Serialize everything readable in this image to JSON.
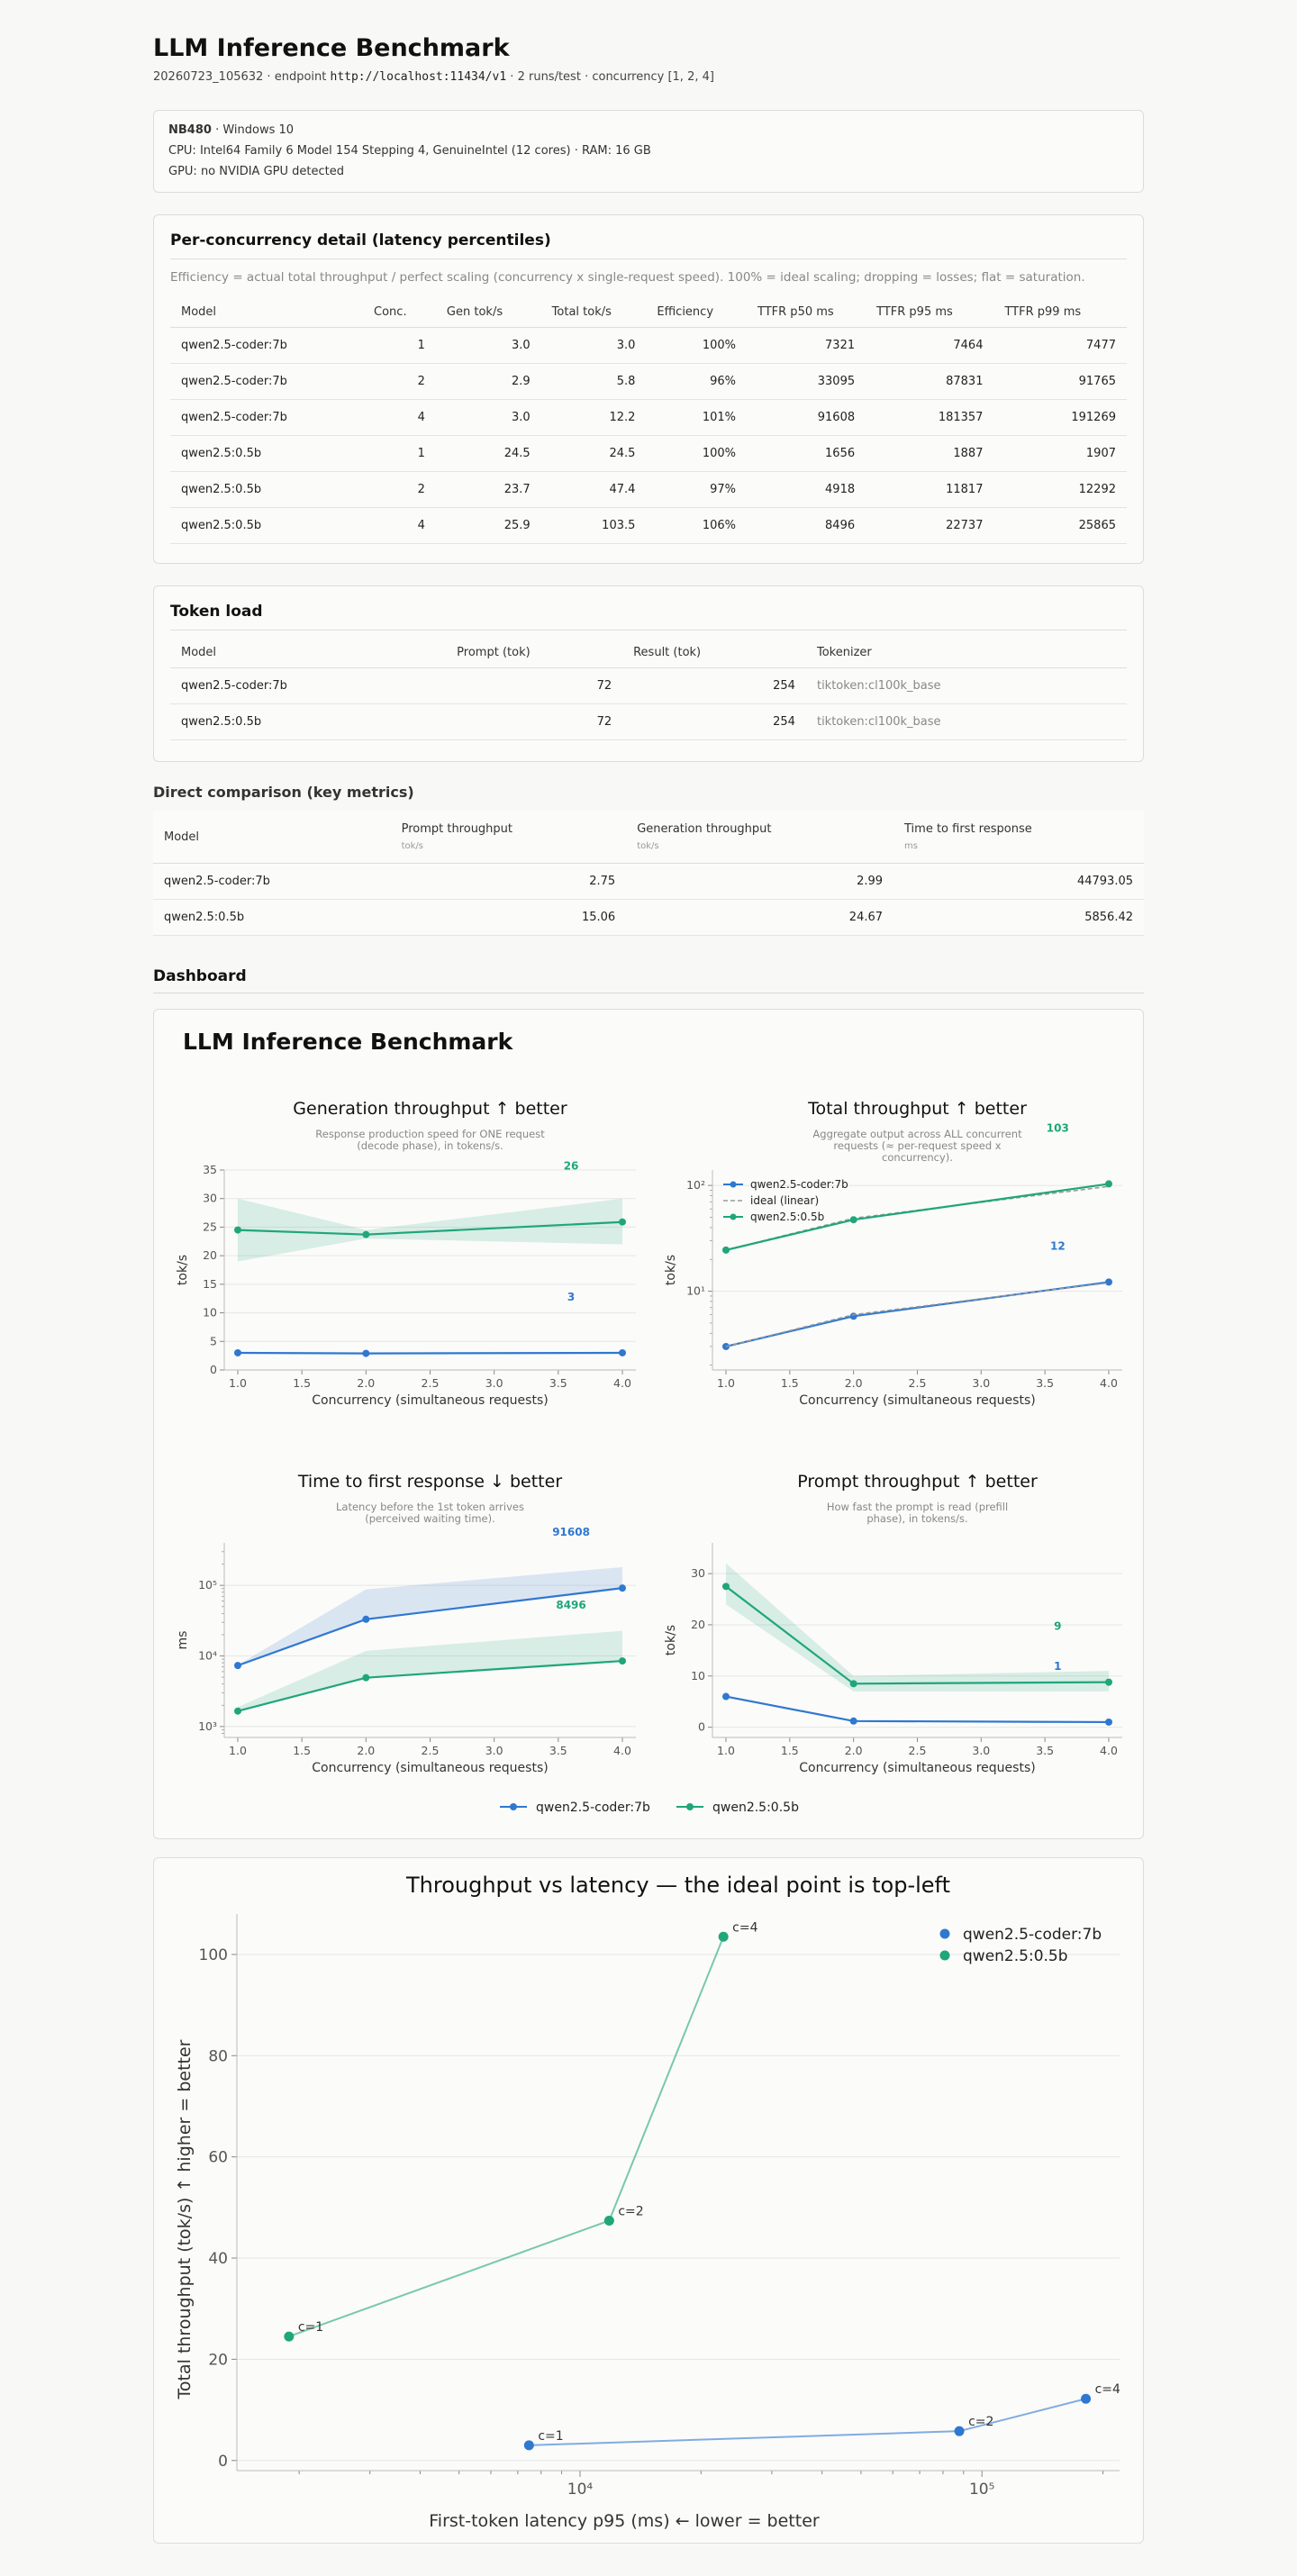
{
  "report": {
    "title": "LLM Inference Benchmark",
    "run_id": "20260723_105632",
    "endpoint_label": "endpoint",
    "endpoint": "http://localhost:11434/v1",
    "runs_info": "2 runs/test",
    "concurrency_info": "concurrency [1, 2, 4]"
  },
  "system": {
    "host": "NB480",
    "os": "Windows 10",
    "cpu_line": "CPU: Intel64 Family 6 Model 154 Stepping 4, GenuineIntel (12 cores) · RAM: 16 GB",
    "gpu_line": "GPU: no NVIDIA GPU detected"
  },
  "detail": {
    "title": "Per-concurrency detail (latency percentiles)",
    "note": "Efficiency = actual total throughput / perfect scaling (concurrency x single-request speed). 100% = ideal scaling; dropping = losses; flat = saturation.",
    "headers": [
      "Model",
      "Conc.",
      "Gen tok/s",
      "Total tok/s",
      "Efficiency",
      "TTFR p50 ms",
      "TTFR p95 ms",
      "TTFR p99 ms"
    ],
    "rows": [
      [
        "qwen2.5-coder:7b",
        "1",
        "3.0",
        "3.0",
        "100%",
        "7321",
        "7464",
        "7477"
      ],
      [
        "qwen2.5-coder:7b",
        "2",
        "2.9",
        "5.8",
        "96%",
        "33095",
        "87831",
        "91765"
      ],
      [
        "qwen2.5-coder:7b",
        "4",
        "3.0",
        "12.2",
        "101%",
        "91608",
        "181357",
        "191269"
      ],
      [
        "qwen2.5:0.5b",
        "1",
        "24.5",
        "24.5",
        "100%",
        "1656",
        "1887",
        "1907"
      ],
      [
        "qwen2.5:0.5b",
        "2",
        "23.7",
        "47.4",
        "97%",
        "4918",
        "11817",
        "12292"
      ],
      [
        "qwen2.5:0.5b",
        "4",
        "25.9",
        "103.5",
        "106%",
        "8496",
        "22737",
        "25865"
      ]
    ]
  },
  "tokens": {
    "title": "Token load",
    "headers": [
      "Model",
      "Prompt (tok)",
      "Result (tok)",
      "Tokenizer"
    ],
    "rows": [
      [
        "qwen2.5-coder:7b",
        "72",
        "254",
        "tiktoken:cl100k_base"
      ],
      [
        "qwen2.5:0.5b",
        "72",
        "254",
        "tiktoken:cl100k_base"
      ]
    ]
  },
  "comparison": {
    "title": "Direct comparison (key metrics)",
    "headers": [
      {
        "label": "Model",
        "unit": ""
      },
      {
        "label": "Prompt throughput",
        "unit": "tok/s"
      },
      {
        "label": "Generation throughput",
        "unit": "tok/s"
      },
      {
        "label": "Time to first response",
        "unit": "ms"
      }
    ],
    "rows": [
      [
        "qwen2.5-coder:7b",
        "2.75",
        "2.99",
        "44793.05"
      ],
      [
        "qwen2.5:0.5b",
        "15.06",
        "24.67",
        "5856.42"
      ]
    ]
  },
  "dashboard": {
    "heading": "Dashboard",
    "title": "LLM Inference Benchmark",
    "legend": [
      "qwen2.5-coder:7b",
      "qwen2.5:0.5b"
    ]
  },
  "colors": {
    "coder": "#2f78d0",
    "small": "#1fa67a"
  },
  "chart_data": [
    {
      "type": "line",
      "title": "Generation throughput  ↑ better",
      "subtitle": [
        "Response production speed for ONE request",
        "(decode phase), in tokens/s."
      ],
      "xlabel": "Concurrency (simultaneous requests)",
      "ylabel": "tok/s",
      "xlim": [
        1,
        4
      ],
      "ylim": [
        0,
        35
      ],
      "x_ticks": [
        "1.0",
        "1.5",
        "2.0",
        "2.5",
        "3.0",
        "3.5",
        "4.0"
      ],
      "y_ticks": [
        "0",
        "5",
        "10",
        "15",
        "20",
        "25",
        "30",
        "35"
      ],
      "series": [
        {
          "name": "qwen2.5-coder:7b",
          "x": [
            1,
            2,
            4
          ],
          "y": [
            3.0,
            2.9,
            3.0
          ],
          "band_lo": [
            3.0,
            2.9,
            3.0
          ],
          "band_hi": [
            3.0,
            2.9,
            3.0
          ],
          "label": "3"
        },
        {
          "name": "qwen2.5:0.5b",
          "x": [
            1,
            2,
            4
          ],
          "y": [
            24.5,
            23.7,
            25.9
          ],
          "band_lo": [
            19,
            23,
            22
          ],
          "band_hi": [
            30,
            24.5,
            30
          ],
          "label": "26"
        }
      ]
    },
    {
      "type": "line",
      "title": "Total throughput  ↑ better",
      "subtitle": [
        "Aggregate output across ALL concurrent",
        "requests (≈ per-request speed x",
        "concurrency)."
      ],
      "xlabel": "Concurrency (simultaneous requests)",
      "ylabel": "tok/s",
      "yscale": "log",
      "xlim": [
        1,
        4
      ],
      "ylim": [
        1.8,
        140
      ],
      "x_ticks": [
        "1.0",
        "1.5",
        "2.0",
        "2.5",
        "3.0",
        "3.5",
        "4.0"
      ],
      "y_ticks": [
        "10¹",
        "10²"
      ],
      "legend": [
        "qwen2.5-coder:7b",
        "ideal (linear)",
        "qwen2.5:0.5b"
      ],
      "series": [
        {
          "name": "qwen2.5-coder:7b",
          "x": [
            1,
            2,
            4
          ],
          "y": [
            3.0,
            5.8,
            12.2
          ],
          "label": "12"
        },
        {
          "name": "ideal (linear)",
          "x": [
            1,
            2,
            4
          ],
          "y": [
            3.0,
            6.0,
            12.0
          ]
        },
        {
          "name": "ideal (linear)",
          "x": [
            1,
            2,
            4
          ],
          "y": [
            24.5,
            49.0,
            98.0
          ]
        },
        {
          "name": "qwen2.5:0.5b",
          "x": [
            1,
            2,
            4
          ],
          "y": [
            24.5,
            47.4,
            103.5
          ],
          "label": "103"
        }
      ]
    },
    {
      "type": "line",
      "title": "Time to first response  ↓ better",
      "subtitle": [
        "Latency before the 1st token arrives",
        "(perceived waiting time)."
      ],
      "xlabel": "Concurrency (simultaneous requests)",
      "ylabel": "ms",
      "yscale": "log",
      "xlim": [
        1,
        4
      ],
      "ylim": [
        700,
        400000
      ],
      "x_ticks": [
        "1.0",
        "1.5",
        "2.0",
        "2.5",
        "3.0",
        "3.5",
        "4.0"
      ],
      "y_ticks": [
        "10³",
        "10⁴",
        "10⁵"
      ],
      "series": [
        {
          "name": "qwen2.5-coder:7b",
          "x": [
            1,
            2,
            4
          ],
          "y": [
            7321,
            33095,
            91608
          ],
          "band_lo": [
            7321,
            33095,
            91608
          ],
          "band_hi": [
            7464,
            87831,
            181357
          ],
          "label": "91608"
        },
        {
          "name": "qwen2.5:0.5b",
          "x": [
            1,
            2,
            4
          ],
          "y": [
            1656,
            4918,
            8496
          ],
          "band_lo": [
            1656,
            4918,
            8496
          ],
          "band_hi": [
            1887,
            11817,
            22737
          ],
          "label": "8496"
        }
      ]
    },
    {
      "type": "line",
      "title": "Prompt throughput  ↑ better",
      "subtitle": [
        "How fast the prompt is read (prefill",
        "phase), in tokens/s."
      ],
      "xlabel": "Concurrency (simultaneous requests)",
      "ylabel": "tok/s",
      "xlim": [
        1,
        4
      ],
      "ylim": [
        -2,
        36
      ],
      "x_ticks": [
        "1.0",
        "1.5",
        "2.0",
        "2.5",
        "3.0",
        "3.5",
        "4.0"
      ],
      "y_ticks": [
        "0",
        "10",
        "20",
        "30"
      ],
      "series": [
        {
          "name": "qwen2.5-coder:7b",
          "x": [
            1,
            2,
            4
          ],
          "y": [
            6.0,
            1.2,
            1.0
          ],
          "band_lo": [
            6.0,
            1.2,
            1.0
          ],
          "band_hi": [
            6.0,
            1.2,
            1.0
          ],
          "label": "1"
        },
        {
          "name": "qwen2.5:0.5b",
          "x": [
            1,
            2,
            4
          ],
          "y": [
            27.5,
            8.5,
            8.8
          ],
          "band_lo": [
            24,
            7,
            7
          ],
          "band_hi": [
            32,
            10,
            11
          ],
          "label": "9"
        }
      ]
    },
    {
      "type": "scatter",
      "title": "Throughput vs latency — the ideal point is top-left",
      "xlabel": "First-token latency p95 (ms)  ← lower = better",
      "ylabel": "Total throughput (tok/s)  ↑ higher = better",
      "xscale": "log",
      "xlim": [
        1400,
        220000
      ],
      "ylim": [
        -2,
        108
      ],
      "x_ticks": [
        "10⁴",
        "10⁵"
      ],
      "y_ticks": [
        "0",
        "20",
        "40",
        "60",
        "80",
        "100"
      ],
      "series": [
        {
          "name": "qwen2.5-coder:7b",
          "x": [
            7464,
            87831,
            181357
          ],
          "y": [
            3.0,
            5.8,
            12.2
          ],
          "labels": [
            "c=1",
            "c=2",
            "c=4"
          ]
        },
        {
          "name": "qwen2.5:0.5b",
          "x": [
            1887,
            11817,
            22737
          ],
          "y": [
            24.5,
            47.4,
            103.5
          ],
          "labels": [
            "c=1",
            "c=2",
            "c=4"
          ]
        }
      ]
    }
  ]
}
